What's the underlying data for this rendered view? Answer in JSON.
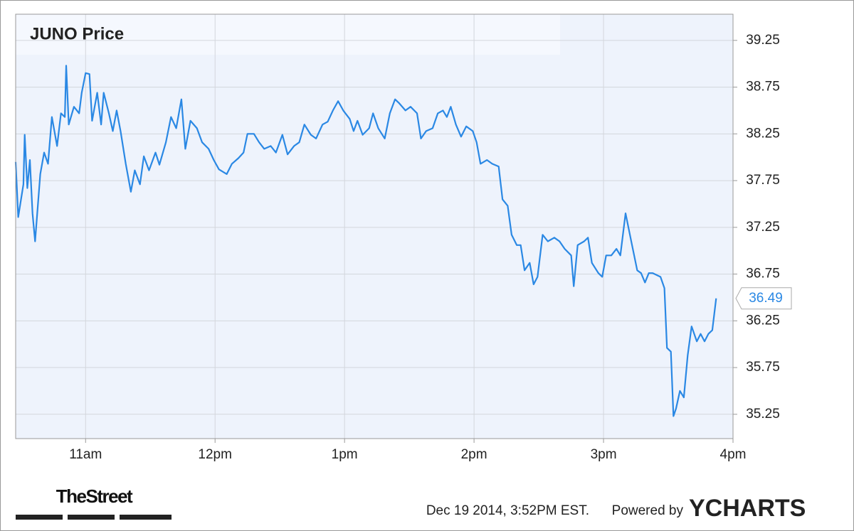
{
  "chart_data": {
    "type": "line",
    "title": "JUNO Price",
    "x": [
      10.46,
      10.48,
      10.52,
      10.53,
      10.55,
      10.57,
      10.59,
      10.61,
      10.65,
      10.68,
      10.71,
      10.74,
      10.78,
      10.81,
      10.84,
      10.85,
      10.87,
      10.91,
      10.95,
      10.97,
      11.0,
      11.03,
      11.05,
      11.09,
      11.12,
      11.14,
      11.18,
      11.21,
      11.24,
      11.27,
      11.31,
      11.35,
      11.38,
      11.42,
      11.45,
      11.49,
      11.54,
      11.57,
      11.62,
      11.66,
      11.7,
      11.74,
      11.77,
      11.81,
      11.86,
      11.9,
      11.95,
      11.99,
      12.03,
      12.09,
      12.13,
      12.18,
      12.22,
      12.25,
      12.3,
      12.34,
      12.38,
      12.43,
      12.47,
      12.52,
      12.56,
      12.61,
      12.65,
      12.69,
      12.74,
      12.78,
      12.83,
      12.87,
      12.91,
      12.95,
      12.99,
      13.04,
      13.07,
      13.1,
      13.14,
      13.19,
      13.22,
      13.26,
      13.31,
      13.35,
      13.39,
      13.42,
      13.47,
      13.51,
      13.56,
      13.59,
      13.63,
      13.68,
      13.72,
      13.76,
      13.79,
      13.82,
      13.86,
      13.9,
      13.94,
      13.99,
      14.02,
      14.05,
      14.1,
      14.14,
      14.19,
      14.22,
      14.26,
      14.29,
      14.33,
      14.36,
      14.39,
      14.43,
      14.46,
      14.49,
      14.53,
      14.57,
      14.62,
      14.66,
      14.7,
      14.75,
      14.77,
      14.8,
      14.85,
      14.88,
      14.91,
      14.96,
      14.99,
      15.02,
      15.06,
      15.1,
      15.13,
      15.17,
      15.22,
      15.26,
      15.29,
      15.32,
      15.35,
      15.38,
      15.44,
      15.47,
      15.49,
      15.52,
      15.54,
      15.56,
      15.59,
      15.62,
      15.65,
      15.68,
      15.72,
      15.75,
      15.78,
      15.81,
      15.84,
      15.87
    ],
    "series": [
      {
        "name": "JUNO",
        "color": "#2a88e4",
        "values": [
          37.95,
          37.36,
          37.71,
          38.24,
          37.67,
          37.97,
          37.4,
          37.1,
          37.82,
          38.05,
          37.93,
          38.43,
          38.12,
          38.47,
          38.43,
          38.98,
          38.35,
          38.54,
          38.47,
          38.69,
          38.9,
          38.89,
          38.39,
          38.69,
          38.35,
          38.69,
          38.47,
          38.28,
          38.5,
          38.28,
          37.93,
          37.63,
          37.86,
          37.71,
          38.01,
          37.86,
          38.05,
          37.92,
          38.16,
          38.43,
          38.31,
          38.62,
          38.09,
          38.39,
          38.31,
          38.16,
          38.09,
          37.97,
          37.87,
          37.82,
          37.93,
          37.99,
          38.05,
          38.25,
          38.25,
          38.16,
          38.09,
          38.12,
          38.05,
          38.24,
          38.03,
          38.12,
          38.16,
          38.35,
          38.24,
          38.2,
          38.35,
          38.38,
          38.5,
          38.6,
          38.5,
          38.41,
          38.28,
          38.39,
          38.24,
          38.31,
          38.47,
          38.31,
          38.2,
          38.47,
          38.62,
          38.58,
          38.5,
          38.54,
          38.47,
          38.2,
          38.28,
          38.31,
          38.47,
          38.5,
          38.43,
          38.54,
          38.35,
          38.22,
          38.33,
          38.28,
          38.16,
          37.93,
          37.97,
          37.93,
          37.9,
          37.55,
          37.48,
          37.17,
          37.06,
          37.06,
          36.79,
          36.87,
          36.64,
          36.72,
          37.17,
          37.1,
          37.14,
          37.1,
          37.02,
          36.95,
          36.62,
          37.06,
          37.1,
          37.14,
          36.87,
          36.76,
          36.72,
          36.95,
          36.95,
          37.02,
          36.95,
          37.4,
          37.06,
          36.79,
          36.76,
          36.66,
          36.76,
          36.76,
          36.72,
          36.6,
          35.96,
          35.92,
          35.23,
          35.31,
          35.5,
          35.43,
          35.88,
          36.19,
          36.03,
          36.11,
          36.03,
          36.11,
          36.15,
          36.49
        ]
      }
    ],
    "xlim": [
      10.46,
      16
    ],
    "xticks": [
      {
        "value": 11,
        "label": "11am"
      },
      {
        "value": 12,
        "label": "12pm"
      },
      {
        "value": 13,
        "label": "1pm"
      },
      {
        "value": 14,
        "label": "2pm"
      },
      {
        "value": 15,
        "label": "3pm"
      },
      {
        "value": 16,
        "label": "4pm"
      }
    ],
    "ylim": [
      34.99,
      39.53
    ],
    "yticks": [
      35.25,
      35.75,
      36.25,
      36.75,
      37.25,
      37.75,
      38.25,
      38.75,
      39.25
    ],
    "grid": true
  },
  "footer": {
    "brand": "TheStreet",
    "timestamp": "Dec 19 2014, 3:52PM EST.",
    "powered_by": "Powered by",
    "logo": "YCHARTS"
  }
}
